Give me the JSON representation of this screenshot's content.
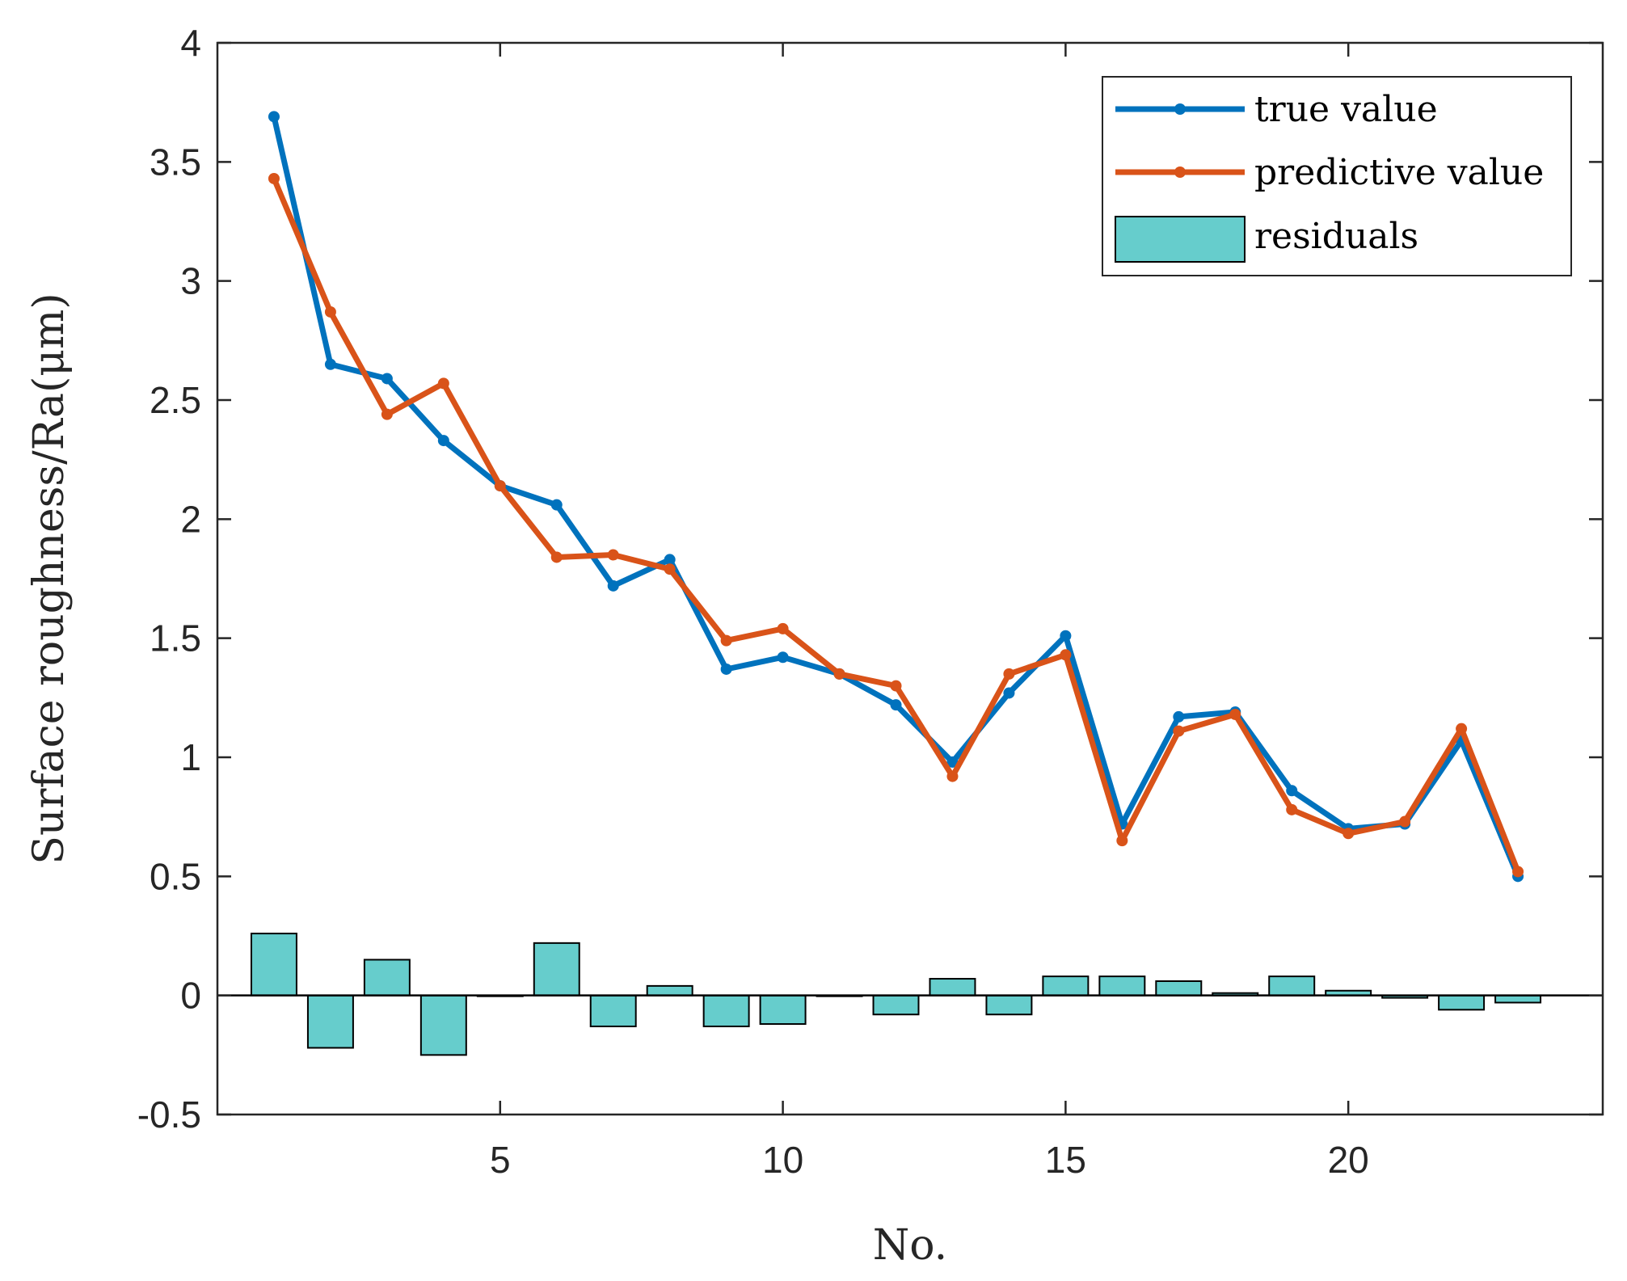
{
  "chart_data": {
    "type": "line",
    "title": "",
    "xlabel": "No.",
    "ylabel": "Surface roughness/Ra(μm)",
    "xlim": [
      0,
      24.5
    ],
    "ylim": [
      -0.5,
      4
    ],
    "xticks": [
      5,
      10,
      15,
      20
    ],
    "yticks": [
      -0.5,
      0,
      0.5,
      1,
      1.5,
      2,
      2.5,
      3,
      3.5,
      4
    ],
    "ytick_labels": [
      "-0.5",
      "0",
      "0.5",
      "1",
      "1.5",
      "2",
      "2.5",
      "3",
      "3.5",
      "4"
    ],
    "xtick_labels": [
      "5",
      "10",
      "15",
      "20"
    ],
    "grid": false,
    "legend_position": "top-right",
    "x": [
      1,
      2,
      3,
      4,
      5,
      6,
      7,
      8,
      9,
      10,
      11,
      12,
      13,
      14,
      15,
      16,
      17,
      18,
      19,
      20,
      21,
      22,
      23
    ],
    "series": [
      {
        "name": "true value",
        "kind": "line",
        "color": "#0072BD",
        "values": [
          3.69,
          2.65,
          2.59,
          2.33,
          2.14,
          2.06,
          1.72,
          1.83,
          1.37,
          1.42,
          1.35,
          1.22,
          0.98,
          1.27,
          1.51,
          0.72,
          1.17,
          1.19,
          0.86,
          0.7,
          0.72,
          1.07,
          0.5
        ]
      },
      {
        "name": "predictive value",
        "kind": "line",
        "color": "#D95319",
        "values": [
          3.43,
          2.87,
          2.44,
          2.57,
          2.14,
          1.84,
          1.85,
          1.79,
          1.49,
          1.54,
          1.35,
          1.3,
          0.92,
          1.35,
          1.43,
          0.65,
          1.11,
          1.18,
          0.78,
          0.68,
          0.73,
          1.12,
          0.52
        ]
      },
      {
        "name": "residuals",
        "kind": "bar",
        "color": "#66CDCC",
        "values": [
          0.26,
          -0.22,
          0.15,
          -0.25,
          0.0,
          0.22,
          -0.13,
          0.04,
          -0.13,
          -0.12,
          0.0,
          -0.08,
          0.07,
          -0.08,
          0.08,
          0.08,
          0.06,
          0.01,
          0.08,
          0.02,
          -0.01,
          -0.06,
          -0.03
        ]
      }
    ]
  }
}
